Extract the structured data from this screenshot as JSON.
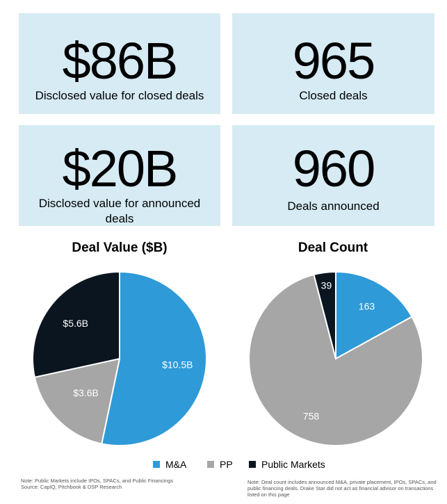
{
  "kpis": [
    {
      "value": "$86B",
      "caption": "Disclosed value for closed deals"
    },
    {
      "value": "965",
      "caption": "Closed deals"
    },
    {
      "value": "$20B",
      "caption": "Disclosed value for announced deals"
    },
    {
      "value": "960",
      "caption": "Deals announced"
    }
  ],
  "colors": {
    "ma": "#2e9ad8",
    "pp": "#a6a6a6",
    "public": "#0a1520",
    "kpi_bg": "#d6ebf4"
  },
  "chart_data": [
    {
      "type": "pie",
      "title": "Deal Value ($B)",
      "categories": [
        "M&A",
        "PP",
        "Public Markets"
      ],
      "values": [
        10.5,
        3.6,
        5.6
      ],
      "labels": [
        "$10.5B",
        "$3.6B",
        "$5.6B"
      ]
    },
    {
      "type": "pie",
      "title": "Deal Count",
      "categories": [
        "M&A",
        "PP",
        "Public Markets"
      ],
      "values": [
        163,
        758,
        39
      ],
      "labels": [
        "163",
        "758",
        "39"
      ]
    }
  ],
  "legend": {
    "placement": "bottom-center",
    "items": [
      {
        "label": "M&A",
        "color": "#2e9ad8"
      },
      {
        "label": "PP",
        "color": "#a6a6a6"
      },
      {
        "label": "Public Markets",
        "color": "#0a1520"
      }
    ]
  },
  "notes": {
    "left": "Note: Public Markets include IPOs, SPACs, and Public Financings\nSource: CapIQ, Pitchbook & DSP Research",
    "right": "Note: Deal count includes announced M&A, private placement, IPOs, SPACs, and public financing deals. Drake Star did not act as financial advisor on transactions listed on this page"
  }
}
